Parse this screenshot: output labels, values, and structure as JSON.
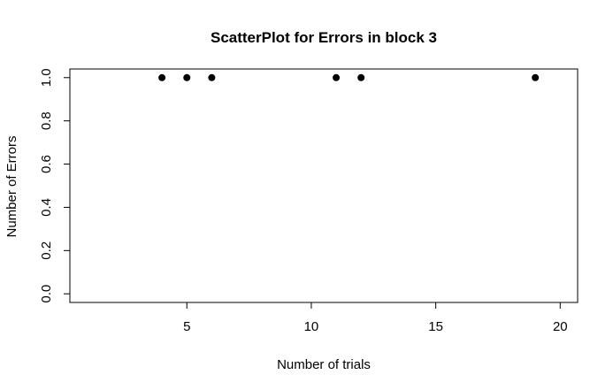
{
  "chart_data": {
    "type": "scatter",
    "title": "ScatterPlot for Errors in block 3",
    "xlabel": "Number of trials",
    "ylabel": "Number of Errors",
    "xlim": [
      0.3,
      20.7
    ],
    "ylim": [
      -0.04,
      1.04
    ],
    "x_ticks": [
      5,
      10,
      15,
      20
    ],
    "y_ticks": [
      0.0,
      0.2,
      0.4,
      0.6,
      0.8,
      1.0
    ],
    "x_tick_labels": [
      "5",
      "10",
      "15",
      "20"
    ],
    "y_tick_labels": [
      "0.0",
      "0.2",
      "0.4",
      "0.6",
      "0.8",
      "1.0"
    ],
    "grid": false,
    "point_color": "#000000",
    "points": [
      {
        "x": 4,
        "y": 1
      },
      {
        "x": 5,
        "y": 1
      },
      {
        "x": 6,
        "y": 1
      },
      {
        "x": 11,
        "y": 1
      },
      {
        "x": 12,
        "y": 1
      },
      {
        "x": 19,
        "y": 1
      }
    ]
  }
}
